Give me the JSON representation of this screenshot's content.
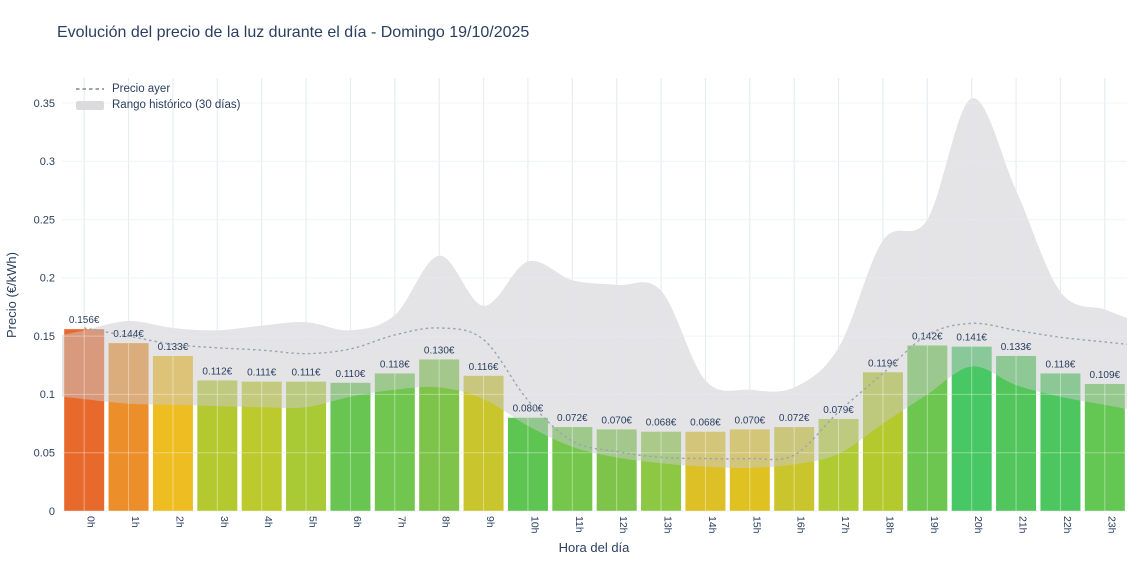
{
  "chart_data": {
    "type": "bar",
    "title": "Evolución del precio de la luz durante el día - Domingo 19/10/2025",
    "xlabel": "Hora del día",
    "ylabel": "Precio (€/kWh)",
    "ylim": [
      0,
      0.37
    ],
    "yticks": [
      0,
      0.05,
      0.1,
      0.15,
      0.2,
      0.25,
      0.3,
      0.35
    ],
    "ytick_labels": [
      "0",
      "0.05",
      "0.1",
      "0.15",
      "0.2",
      "0.25",
      "0.3",
      "0.35"
    ],
    "categories": [
      "0h",
      "1h",
      "2h",
      "3h",
      "4h",
      "5h",
      "6h",
      "7h",
      "8h",
      "9h",
      "10h",
      "11h",
      "12h",
      "13h",
      "14h",
      "15h",
      "16h",
      "17h",
      "18h",
      "19h",
      "20h",
      "21h",
      "22h",
      "23h"
    ],
    "grid": true,
    "legend_position": "top-left",
    "series": [
      {
        "type": "bar",
        "values": [
          0.156,
          0.144,
          0.133,
          0.112,
          0.111,
          0.111,
          0.11,
          0.118,
          0.13,
          0.116,
          0.08,
          0.072,
          0.07,
          0.068,
          0.068,
          0.07,
          0.072,
          0.079,
          0.119,
          0.142,
          0.141,
          0.133,
          0.118,
          0.109
        ],
        "value_labels": [
          "0.156€",
          "0.144€",
          "0.133€",
          "0.112€",
          "0.111€",
          "0.111€",
          "0.110€",
          "0.118€",
          "0.130€",
          "0.116€",
          "0.080€",
          "0.072€",
          "0.070€",
          "0.068€",
          "0.068€",
          "0.070€",
          "0.072€",
          "0.079€",
          "0.119€",
          "0.142€",
          "0.141€",
          "0.133€",
          "0.118€",
          "0.109€"
        ],
        "bar_colors": [
          "#e8692c",
          "#ec8e2a",
          "#eebd22",
          "#b4c930",
          "#bcca2e",
          "#aaca35",
          "#68c551",
          "#70c64e",
          "#7ec44a",
          "#c9c52d",
          "#5ec553",
          "#74c64d",
          "#7ec44a",
          "#8cc844",
          "#dcc025",
          "#dfc222",
          "#cbc52d",
          "#b0ca33",
          "#b4c92e",
          "#6cc64f",
          "#48c765",
          "#52c65c",
          "#4ec65f",
          "#64c653"
        ]
      },
      {
        "name": "Precio ayer",
        "type": "line",
        "dash": "dot",
        "color": "#9aa5b2",
        "values": [
          0.157,
          0.15,
          0.143,
          0.14,
          0.138,
          0.135,
          0.139,
          0.151,
          0.157,
          0.147,
          0.095,
          0.06,
          0.051,
          0.046,
          0.045,
          0.045,
          0.048,
          0.085,
          0.118,
          0.151,
          0.161,
          0.155,
          0.149,
          0.145
        ]
      },
      {
        "name": "Rango histórico (30 días)",
        "type": "band",
        "color": "#cacace",
        "opacity": 0.5,
        "min": [
          0.096,
          0.092,
          0.091,
          0.09,
          0.089,
          0.089,
          0.098,
          0.104,
          0.106,
          0.096,
          0.073,
          0.055,
          0.046,
          0.041,
          0.038,
          0.037,
          0.04,
          0.049,
          0.075,
          0.1,
          0.124,
          0.108,
          0.098,
          0.091
        ],
        "max": [
          0.155,
          0.163,
          0.157,
          0.155,
          0.159,
          0.162,
          0.155,
          0.168,
          0.219,
          0.176,
          0.214,
          0.198,
          0.194,
          0.189,
          0.112,
          0.104,
          0.106,
          0.14,
          0.232,
          0.25,
          0.354,
          0.275,
          0.188,
          0.173
        ]
      }
    ],
    "colors": {
      "text": "#2a3f5f",
      "grid_vertical": "#d8dee6",
      "grid_horizontal": "#e8eef6",
      "background": "#ffffff"
    }
  }
}
